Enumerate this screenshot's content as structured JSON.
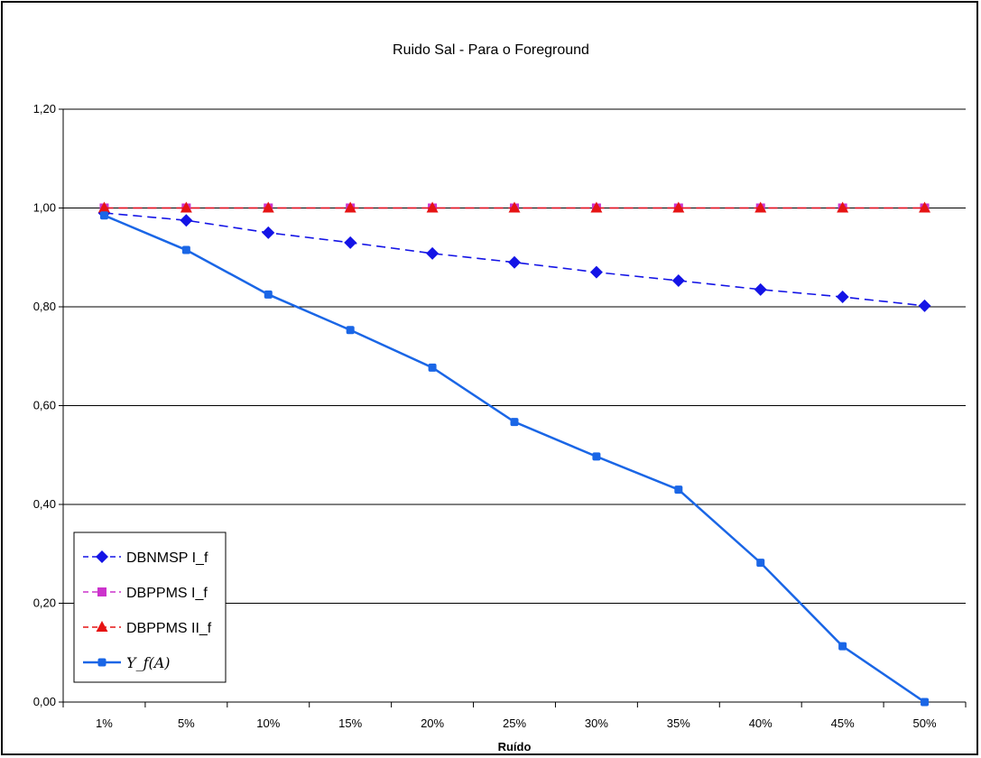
{
  "chart_data": {
    "type": "line",
    "title": "Ruido Sal - Para o Foreground",
    "xlabel": "Ruído",
    "ylabel": "",
    "categories": [
      "1%",
      "5%",
      "10%",
      "15%",
      "20%",
      "25%",
      "30%",
      "35%",
      "40%",
      "45%",
      "50%"
    ],
    "ylim": [
      0,
      1.2
    ],
    "yticks": [
      "0,00",
      "0,20",
      "0,40",
      "0,60",
      "0,80",
      "1,00",
      "1,20"
    ],
    "grid": true,
    "legend_position": "bottom-left",
    "series": [
      {
        "name": "DBNMSP I_f",
        "color": "#1414e6",
        "line_style": "dashed",
        "marker": "diamond",
        "values": [
          0.99,
          0.975,
          0.95,
          0.93,
          0.908,
          0.89,
          0.87,
          0.853,
          0.835,
          0.82,
          0.802
        ]
      },
      {
        "name": "DBPPMS I_f",
        "color": "#cc33cc",
        "line_style": "dashed",
        "marker": "square",
        "values": [
          1.0,
          1.0,
          1.0,
          1.0,
          1.0,
          1.0,
          1.0,
          1.0,
          1.0,
          1.0,
          1.0
        ]
      },
      {
        "name": "DBPPMS II_f",
        "color": "#e61414",
        "line_style": "dashed",
        "marker": "triangle",
        "values": [
          1.0,
          1.0,
          1.0,
          1.0,
          1.0,
          1.0,
          1.0,
          1.0,
          1.0,
          1.0,
          1.0
        ]
      },
      {
        "name": "Υ_f(A)",
        "color": "#1a66e6",
        "line_style": "solid",
        "marker": "circle",
        "values": [
          0.985,
          0.915,
          0.825,
          0.753,
          0.677,
          0.567,
          0.497,
          0.43,
          0.282,
          0.113,
          0.0
        ]
      }
    ]
  }
}
